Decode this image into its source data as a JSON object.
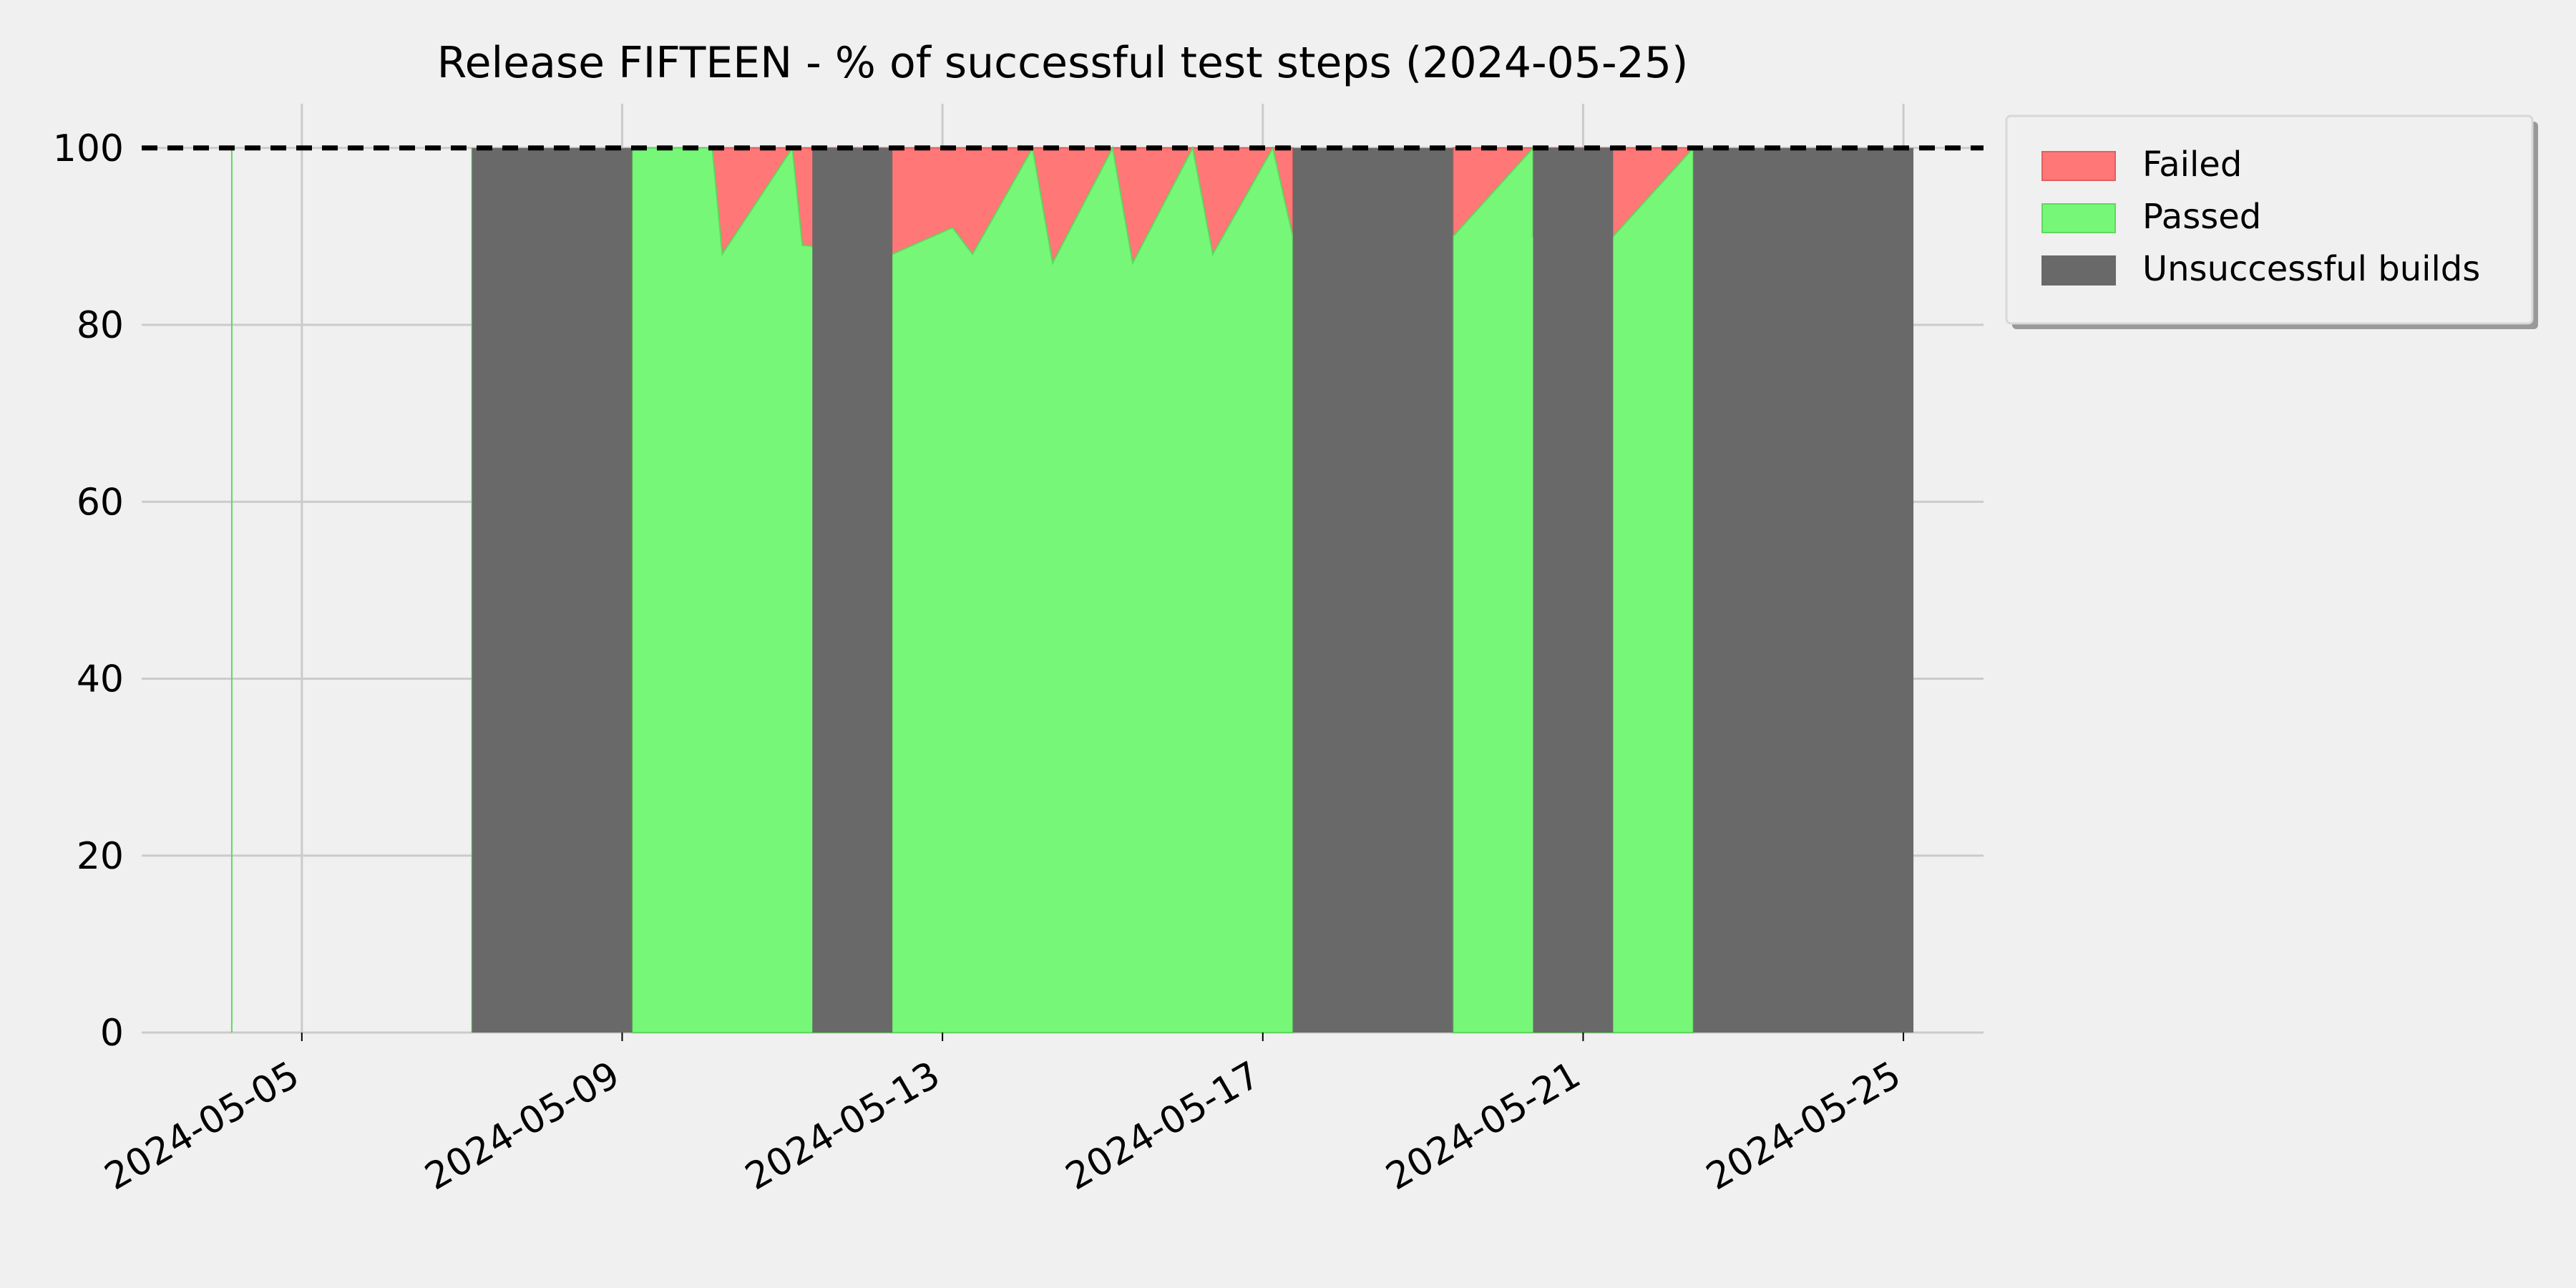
{
  "chart_data": {
    "type": "area",
    "title": "Release FIFTEEN - % of successful test steps (2024-05-25)",
    "xlabel": "",
    "ylabel": "",
    "xlim": [
      "2024-05-03",
      "2024-05-26"
    ],
    "ylim": [
      0,
      105
    ],
    "x_ticks": [
      "2024-05-05",
      "2024-05-09",
      "2024-05-13",
      "2024-05-17",
      "2024-05-21",
      "2024-05-25"
    ],
    "y_ticks": [
      0,
      20,
      40,
      60,
      80,
      100
    ],
    "grid": true,
    "reference_line": {
      "y": 100,
      "style": "dashed",
      "color": "#000000"
    },
    "legend": {
      "position": "outside-top-right",
      "entries": [
        "Failed",
        "Passed",
        "Unsuccessful builds"
      ]
    },
    "colors": {
      "failed": "#ff7777",
      "passed": "#77f777",
      "unsuccessful": "#696969",
      "background": "#f0f0f0",
      "grid": "#cbcbcb"
    },
    "series": [
      {
        "name": "Passed",
        "points": [
          [
            "2024-05-04 03:00",
            100
          ],
          [
            "2024-05-07 03:00",
            100
          ],
          [
            "2024-05-09 03:00",
            100
          ],
          [
            "2024-05-10 03:00",
            100
          ],
          [
            "2024-05-10 06:00",
            88
          ],
          [
            "2024-05-11 03:00",
            100
          ],
          [
            "2024-05-11 06:00",
            89
          ],
          [
            "2024-05-12 09:00",
            88
          ],
          [
            "2024-05-13 03:00",
            91
          ],
          [
            "2024-05-13 09:00",
            88
          ],
          [
            "2024-05-14 03:00",
            100
          ],
          [
            "2024-05-14 09:00",
            87
          ],
          [
            "2024-05-15 03:00",
            100
          ],
          [
            "2024-05-15 09:00",
            87
          ],
          [
            "2024-05-16 03:00",
            100
          ],
          [
            "2024-05-16 09:00",
            88
          ],
          [
            "2024-05-17 03:00",
            100
          ],
          [
            "2024-05-17 09:00",
            90
          ],
          [
            "2024-05-19 09:00",
            90
          ],
          [
            "2024-05-20 09:00",
            100
          ],
          [
            "2024-05-20 09:00",
            90
          ],
          [
            "2024-05-21 09:00",
            90
          ],
          [
            "2024-05-22 09:00",
            100
          ],
          [
            "2024-05-22 09:00",
            90
          ]
        ]
      },
      {
        "name": "Failed",
        "points": [
          [
            "2024-05-10 03:00",
            0
          ],
          [
            "2024-05-10 06:00",
            12
          ],
          [
            "2024-05-11 03:00",
            0
          ],
          [
            "2024-05-11 06:00",
            11
          ],
          [
            "2024-05-12 09:00",
            12
          ],
          [
            "2024-05-13 03:00",
            9
          ],
          [
            "2024-05-13 09:00",
            12
          ],
          [
            "2024-05-14 03:00",
            0
          ],
          [
            "2024-05-14 09:00",
            13
          ],
          [
            "2024-05-15 03:00",
            0
          ],
          [
            "2024-05-15 09:00",
            13
          ],
          [
            "2024-05-16 03:00",
            0
          ],
          [
            "2024-05-16 09:00",
            12
          ],
          [
            "2024-05-17 03:00",
            0
          ],
          [
            "2024-05-17 09:00",
            10
          ],
          [
            "2024-05-19 09:00",
            10
          ],
          [
            "2024-05-20 09:00",
            0
          ],
          [
            "2024-05-20 09:00",
            10
          ],
          [
            "2024-05-21 09:00",
            10
          ],
          [
            "2024-05-22 09:00",
            0
          ],
          [
            "2024-05-22 09:00",
            10
          ]
        ]
      },
      {
        "name": "Unsuccessful builds",
        "periods": [
          [
            "2024-05-07 03:00",
            "2024-05-09 03:00"
          ],
          [
            "2024-05-11 09:00",
            "2024-05-12 09:00"
          ],
          [
            "2024-05-17 09:00",
            "2024-05-19 09:00"
          ],
          [
            "2024-05-20 09:00",
            "2024-05-21 09:00"
          ],
          [
            "2024-05-22 09:00",
            "2024-05-25 03:00"
          ]
        ],
        "value": 100
      }
    ]
  }
}
